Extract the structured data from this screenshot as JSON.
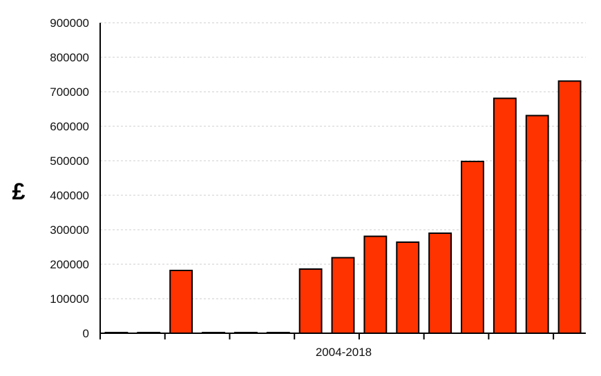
{
  "chart_data": {
    "type": "bar",
    "title": "",
    "xlabel": "2004-2018",
    "ylabel": "£",
    "ylim": [
      0,
      900000
    ],
    "yticks": [
      0,
      100000,
      200000,
      300000,
      400000,
      500000,
      600000,
      700000,
      800000,
      900000
    ],
    "grid": true,
    "bar_color": "#ff3300",
    "values": [
      0,
      0,
      182000,
      0,
      0,
      0,
      186000,
      219000,
      281000,
      264000,
      290000,
      498000,
      681000,
      631000,
      731000
    ]
  }
}
